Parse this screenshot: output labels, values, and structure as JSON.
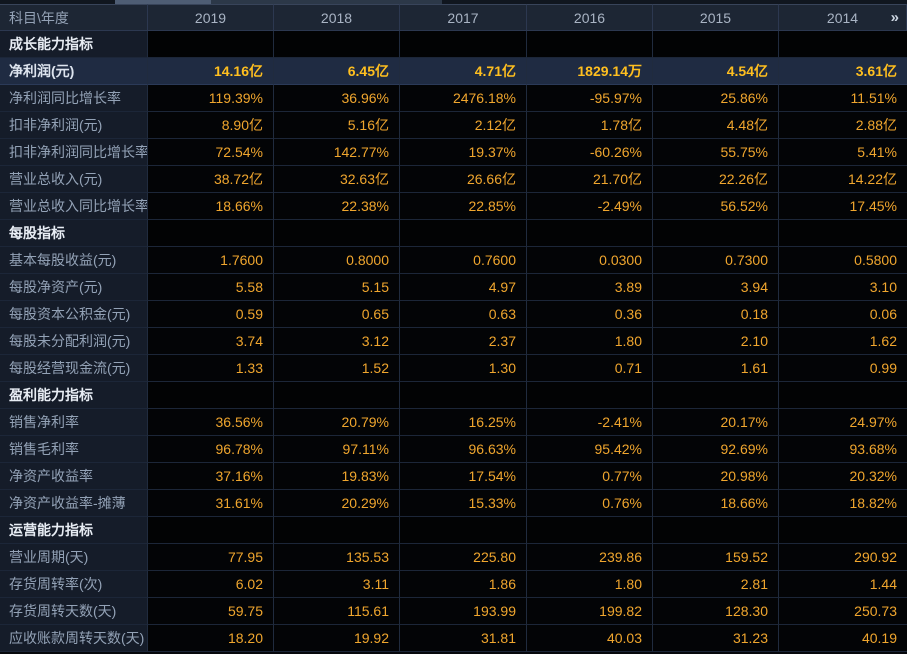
{
  "colors": {
    "value_orange": "#f0a62e",
    "value_highlight": "#ffbf1f",
    "header_bg": "#1d2634",
    "label_col_bg": "#151c29",
    "data_bg": "#030406",
    "highlight_row_bg": "#1f2b42",
    "gridline": "#202b3e"
  },
  "header": {
    "label": "科目\\年度",
    "years": [
      "2019",
      "2018",
      "2017",
      "2016",
      "2015",
      "2014"
    ],
    "more_icon": "»"
  },
  "sections": [
    {
      "title": "成长能力指标",
      "rows": [
        {
          "label": "净利润(元)",
          "highlight": true,
          "values": [
            "14.16亿",
            "6.45亿",
            "4.71亿",
            "1829.14万",
            "4.54亿",
            "3.61亿"
          ]
        },
        {
          "label": "净利润同比增长率",
          "values": [
            "119.39%",
            "36.96%",
            "2476.18%",
            "-95.97%",
            "25.86%",
            "11.51%"
          ]
        },
        {
          "label": "扣非净利润(元)",
          "values": [
            "8.90亿",
            "5.16亿",
            "2.12亿",
            "1.78亿",
            "4.48亿",
            "2.88亿"
          ]
        },
        {
          "label": "扣非净利润同比增长率",
          "values": [
            "72.54%",
            "142.77%",
            "19.37%",
            "-60.26%",
            "55.75%",
            "5.41%"
          ]
        },
        {
          "label": "营业总收入(元)",
          "values": [
            "38.72亿",
            "32.63亿",
            "26.66亿",
            "21.70亿",
            "22.26亿",
            "14.22亿"
          ]
        },
        {
          "label": "营业总收入同比增长率",
          "values": [
            "18.66%",
            "22.38%",
            "22.85%",
            "-2.49%",
            "56.52%",
            "17.45%"
          ]
        }
      ]
    },
    {
      "title": "每股指标",
      "rows": [
        {
          "label": "基本每股收益(元)",
          "values": [
            "1.7600",
            "0.8000",
            "0.7600",
            "0.0300",
            "0.7300",
            "0.5800"
          ]
        },
        {
          "label": "每股净资产(元)",
          "values": [
            "5.58",
            "5.15",
            "4.97",
            "3.89",
            "3.94",
            "3.10"
          ]
        },
        {
          "label": "每股资本公积金(元)",
          "values": [
            "0.59",
            "0.65",
            "0.63",
            "0.36",
            "0.18",
            "0.06"
          ]
        },
        {
          "label": "每股未分配利润(元)",
          "values": [
            "3.74",
            "3.12",
            "2.37",
            "1.80",
            "2.10",
            "1.62"
          ]
        },
        {
          "label": "每股经营现金流(元)",
          "values": [
            "1.33",
            "1.52",
            "1.30",
            "0.71",
            "1.61",
            "0.99"
          ]
        }
      ]
    },
    {
      "title": "盈利能力指标",
      "rows": [
        {
          "label": "销售净利率",
          "values": [
            "36.56%",
            "20.79%",
            "16.25%",
            "-2.41%",
            "20.17%",
            "24.97%"
          ]
        },
        {
          "label": "销售毛利率",
          "values": [
            "96.78%",
            "97.11%",
            "96.63%",
            "95.42%",
            "92.69%",
            "93.68%"
          ]
        },
        {
          "label": "净资产收益率",
          "values": [
            "37.16%",
            "19.83%",
            "17.54%",
            "0.77%",
            "20.98%",
            "20.32%"
          ]
        },
        {
          "label": "净资产收益率-摊薄",
          "values": [
            "31.61%",
            "20.29%",
            "15.33%",
            "0.76%",
            "18.66%",
            "18.82%"
          ]
        }
      ]
    },
    {
      "title": "运营能力指标",
      "rows": [
        {
          "label": "营业周期(天)",
          "values": [
            "77.95",
            "135.53",
            "225.80",
            "239.86",
            "159.52",
            "290.92"
          ]
        },
        {
          "label": "存货周转率(次)",
          "values": [
            "6.02",
            "3.11",
            "1.86",
            "1.80",
            "2.81",
            "1.44"
          ]
        },
        {
          "label": "存货周转天数(天)",
          "values": [
            "59.75",
            "115.61",
            "193.99",
            "199.82",
            "128.30",
            "250.73"
          ]
        },
        {
          "label": "应收账款周转天数(天)",
          "values": [
            "18.20",
            "19.92",
            "31.81",
            "40.03",
            "31.23",
            "40.19"
          ]
        }
      ]
    }
  ]
}
